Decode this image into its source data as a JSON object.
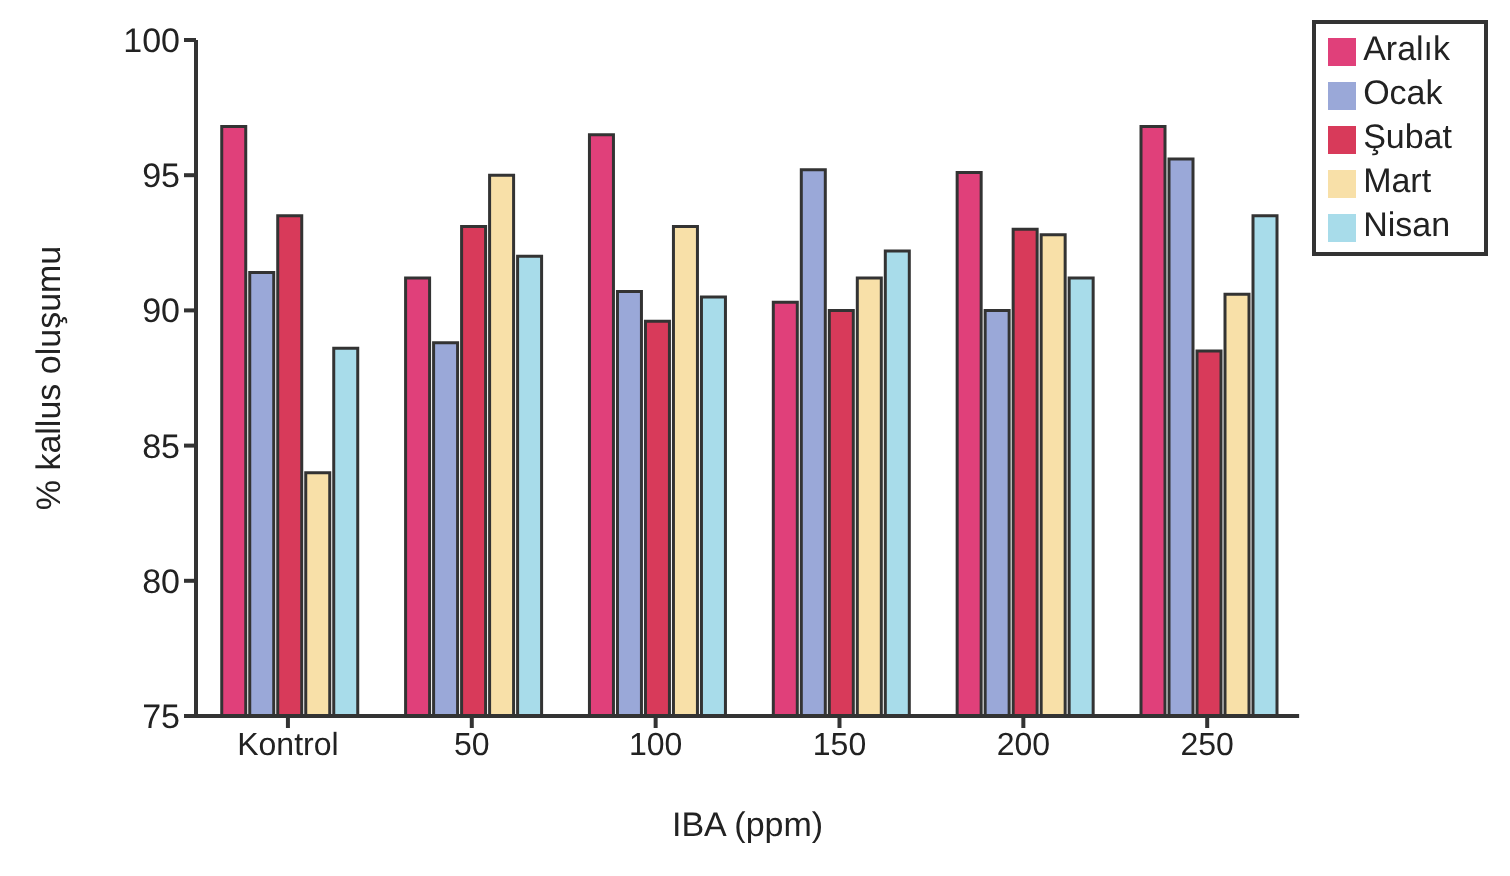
{
  "chart_data": {
    "type": "bar",
    "xlabel": "IBA (ppm)",
    "ylabel": "% kallus oluşumu",
    "categories": [
      "Kontrol",
      "50",
      "100",
      "150",
      "200",
      "250"
    ],
    "series": [
      {
        "name": "Aralık",
        "color": "#e0407a",
        "values": [
          96.8,
          91.2,
          96.5,
          90.3,
          95.1,
          96.8
        ]
      },
      {
        "name": "Ocak",
        "color": "#9aa8d8",
        "values": [
          91.4,
          88.8,
          90.7,
          95.2,
          90.0,
          95.6
        ]
      },
      {
        "name": "Şubat",
        "color": "#d83a5a",
        "values": [
          93.5,
          93.1,
          89.6,
          90.0,
          93.0,
          88.5
        ]
      },
      {
        "name": "Mart",
        "color": "#f8e0a8",
        "values": [
          84.0,
          95.0,
          93.1,
          91.2,
          92.8,
          90.6
        ]
      },
      {
        "name": "Nisan",
        "color": "#a8dcea",
        "values": [
          88.6,
          92.0,
          90.5,
          92.2,
          91.2,
          93.5
        ]
      }
    ],
    "ylim": [
      75,
      100
    ],
    "yticks": [
      75,
      80,
      85,
      90,
      95,
      100
    ],
    "grid": false,
    "legend": "top right"
  }
}
